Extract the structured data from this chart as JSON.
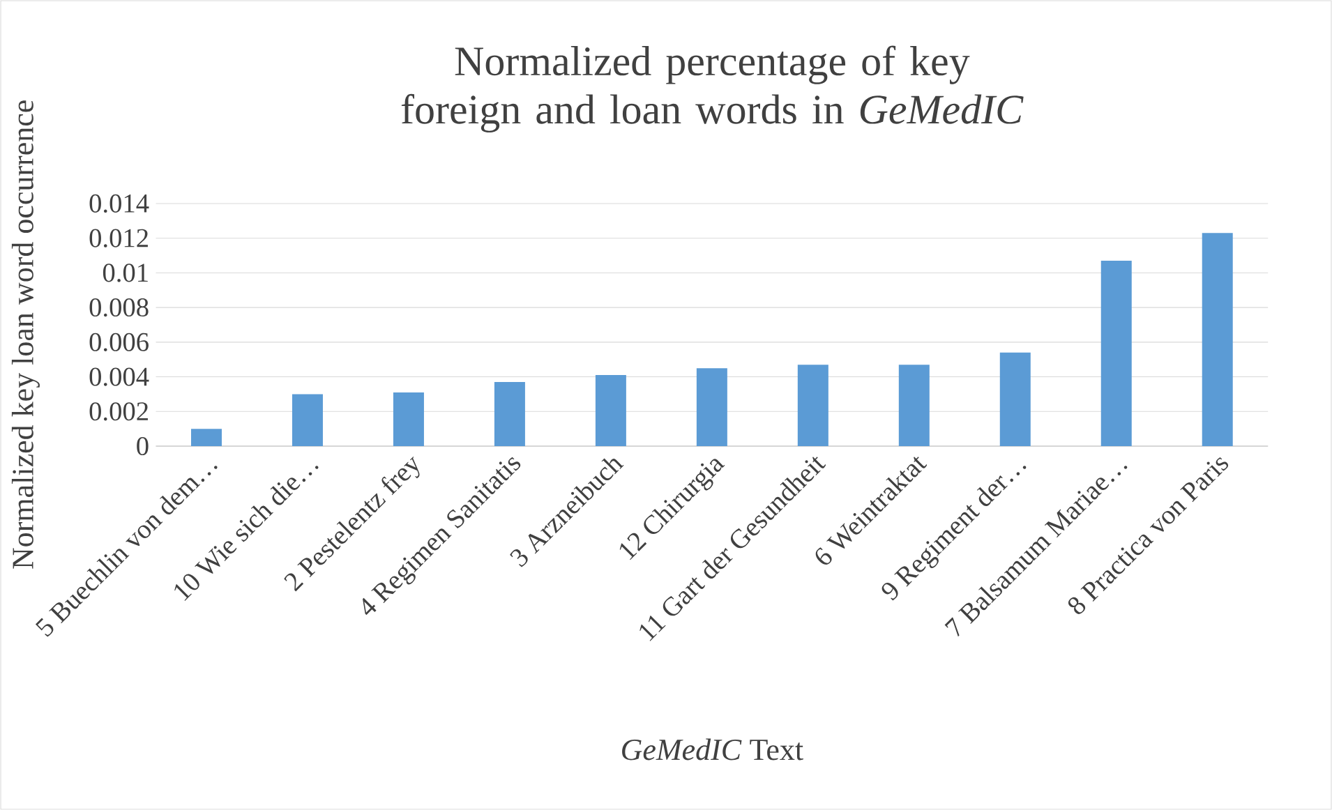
{
  "chart_data": {
    "type": "bar",
    "title": "Normalized percentage of key foreign and loan words in *GeMedIC*",
    "xlabel": "*GeMedIC* Text",
    "ylabel": "Normalized key loan word occurrence",
    "categories": [
      "5 Buechlin von dem…",
      "10 Wie sich die…",
      "2 Pestelentz frey",
      "4 Regimen Sanitatis",
      "3 Arzneibuch",
      "12 Chirurgia",
      "11 Gart der Gesundheit",
      "6 Weintraktat",
      "9 Regiment der…",
      "7 Balsamum Mariae…",
      "8 Practica von Paris"
    ],
    "values": [
      0.001,
      0.003,
      0.0031,
      0.0037,
      0.0041,
      0.0045,
      0.0047,
      0.0047,
      0.0054,
      0.0107,
      0.0123
    ],
    "color": "#5b9bd5",
    "ylim": [
      0,
      0.014
    ],
    "yticks": [
      0,
      0.002,
      0.004,
      0.006,
      0.008,
      0.01,
      0.012,
      0.014
    ],
    "grid": "y"
  }
}
